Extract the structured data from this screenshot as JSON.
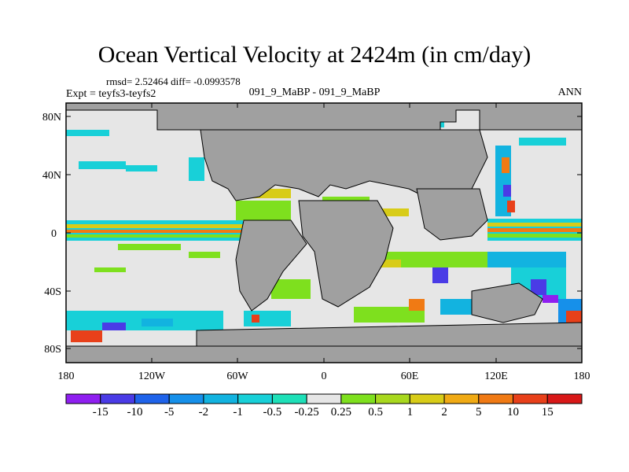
{
  "title": "Ocean Vertical Velocity at 2424m (in cm/day)",
  "stats": "rmsd= 2.52464 diff= -0.0993578",
  "expt": "Expt = teyfs3-teyfs2",
  "case": "091_9_MaBP - 091_9_MaBP",
  "season": "ANN",
  "lat_ticks": [
    "80N",
    "40N",
    "0",
    "40S",
    "80S"
  ],
  "lon_ticks": [
    "180",
    "120W",
    "60W",
    "0",
    "60E",
    "120E",
    "180"
  ],
  "colorbar": {
    "labels": [
      "-15",
      "-10",
      "-5",
      "-2",
      "-1",
      "-0.5",
      "-0.25",
      "0.25",
      "0.5",
      "1",
      "2",
      "5",
      "10",
      "15"
    ],
    "colors": [
      "#8f1ff0",
      "#4a3be6",
      "#1f63ea",
      "#1690ea",
      "#12b3e0",
      "#18d0d8",
      "#1ee0b8",
      "#e6e6e6",
      "#7ee01e",
      "#a8d81e",
      "#d8cc18",
      "#f0aa14",
      "#f07a14",
      "#e8401a",
      "#d81818"
    ]
  },
  "land_color": "#a0a0a0",
  "ocean_neutral_color": "#e6e6e6"
}
